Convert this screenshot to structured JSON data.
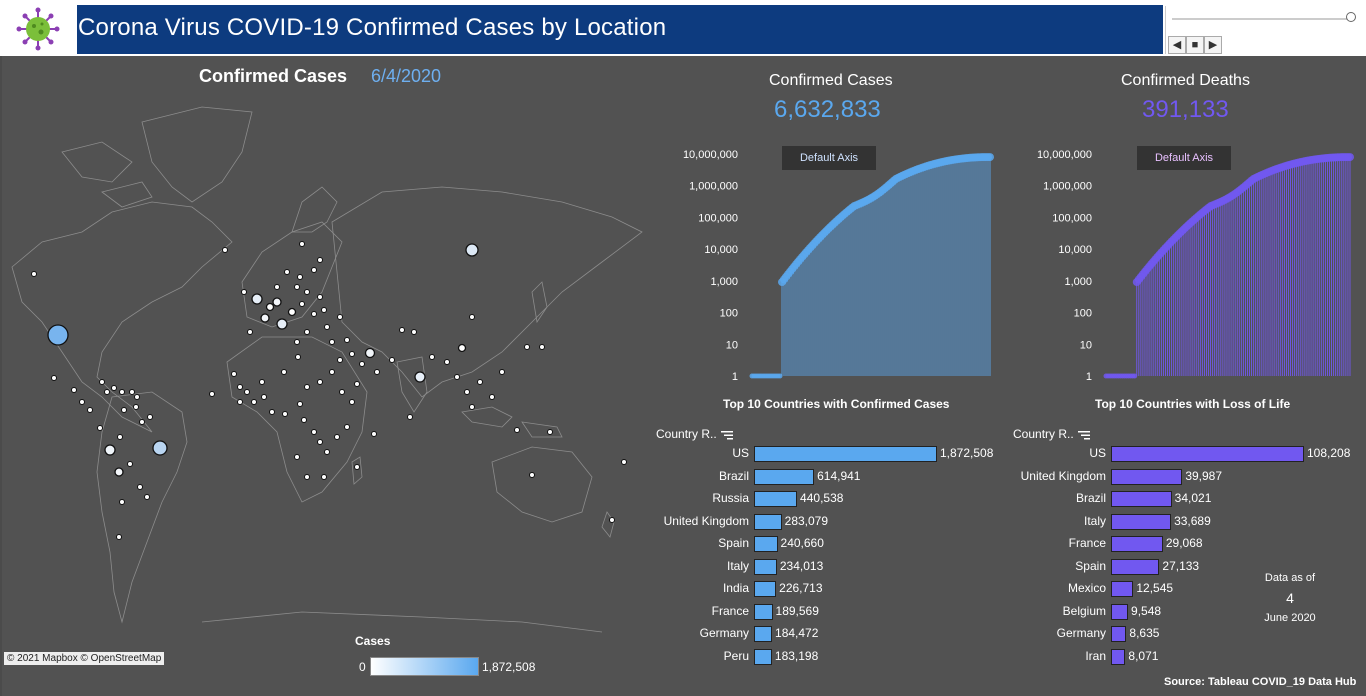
{
  "header": {
    "title": "Corona Virus COVID-19  Confirmed Cases by Location",
    "logo_icon": "virus-icon",
    "player": {
      "prev_icon": "◀",
      "stop_icon": "■",
      "next_icon": "▶"
    }
  },
  "map": {
    "title": "Confirmed Cases",
    "date": "6/4/2020",
    "credit": "© 2021 Mapbox  © OpenStreetMap",
    "legend": {
      "title": "Cases",
      "min": "0",
      "max": "1,872,508"
    }
  },
  "kpis": {
    "cases": {
      "label": "Confirmed Cases",
      "value": "6,632,833",
      "color": "#5aa8ef"
    },
    "deaths": {
      "label": "Confirmed Deaths",
      "value": "391,133",
      "color": "#7158f0"
    }
  },
  "charts": {
    "default_axis_label": "Default Axis",
    "yticks": [
      "10,000,000",
      "1,000,000",
      "100,000",
      "10,000",
      "1,000",
      "100",
      "10",
      "1"
    ]
  },
  "top_cases": {
    "title": "Top 10 Countries with Confirmed Cases",
    "column_header": "Country R..",
    "color": "#5aa8ef",
    "rows": [
      {
        "name": "US",
        "value": 1872508,
        "label": "1,872,508"
      },
      {
        "name": "Brazil",
        "value": 614941,
        "label": "614,941"
      },
      {
        "name": "Russia",
        "value": 440538,
        "label": "440,538"
      },
      {
        "name": "United Kingdom",
        "value": 283079,
        "label": "283,079"
      },
      {
        "name": "Spain",
        "value": 240660,
        "label": "240,660"
      },
      {
        "name": "Italy",
        "value": 234013,
        "label": "234,013"
      },
      {
        "name": "India",
        "value": 226713,
        "label": "226,713"
      },
      {
        "name": "France",
        "value": 189569,
        "label": "189,569"
      },
      {
        "name": "Germany",
        "value": 184472,
        "label": "184,472"
      },
      {
        "name": "Peru",
        "value": 183198,
        "label": "183,198"
      }
    ]
  },
  "top_deaths": {
    "title": "Top 10 Countries with Loss of Life",
    "column_header": "Country R..",
    "color": "#7158f0",
    "rows": [
      {
        "name": "US",
        "value": 108208,
        "label": "108,208"
      },
      {
        "name": "United Kingdom",
        "value": 39987,
        "label": "39,987"
      },
      {
        "name": "Brazil",
        "value": 34021,
        "label": "34,021"
      },
      {
        "name": "Italy",
        "value": 33689,
        "label": "33,689"
      },
      {
        "name": "France",
        "value": 29068,
        "label": "29,068"
      },
      {
        "name": "Spain",
        "value": 27133,
        "label": "27,133"
      },
      {
        "name": "Mexico",
        "value": 12545,
        "label": "12,545"
      },
      {
        "name": "Belgium",
        "value": 9548,
        "label": "9,548"
      },
      {
        "name": "Germany",
        "value": 8635,
        "label": "8,635"
      },
      {
        "name": "Iran",
        "value": 8071,
        "label": "8,071"
      }
    ]
  },
  "data_as_of": {
    "line1": "Data as of",
    "day": "4",
    "line3": "June 2020"
  },
  "source": "Source: Tableau COVID_19 Data Hub",
  "chart_data": [
    {
      "type": "bar",
      "title": "Top 10 Countries with Confirmed Cases",
      "categories": [
        "US",
        "Brazil",
        "Russia",
        "United Kingdom",
        "Spain",
        "Italy",
        "India",
        "France",
        "Germany",
        "Peru"
      ],
      "values": [
        1872508,
        614941,
        440538,
        283079,
        240660,
        234013,
        226713,
        189569,
        184472,
        183198
      ]
    },
    {
      "type": "bar",
      "title": "Top 10 Countries with Loss of Life",
      "categories": [
        "US",
        "United Kingdom",
        "Brazil",
        "Italy",
        "France",
        "Spain",
        "Mexico",
        "Belgium",
        "Germany",
        "Iran"
      ],
      "values": [
        108208,
        39987,
        34021,
        33689,
        29068,
        27133,
        12545,
        9548,
        8635,
        8071
      ]
    }
  ]
}
